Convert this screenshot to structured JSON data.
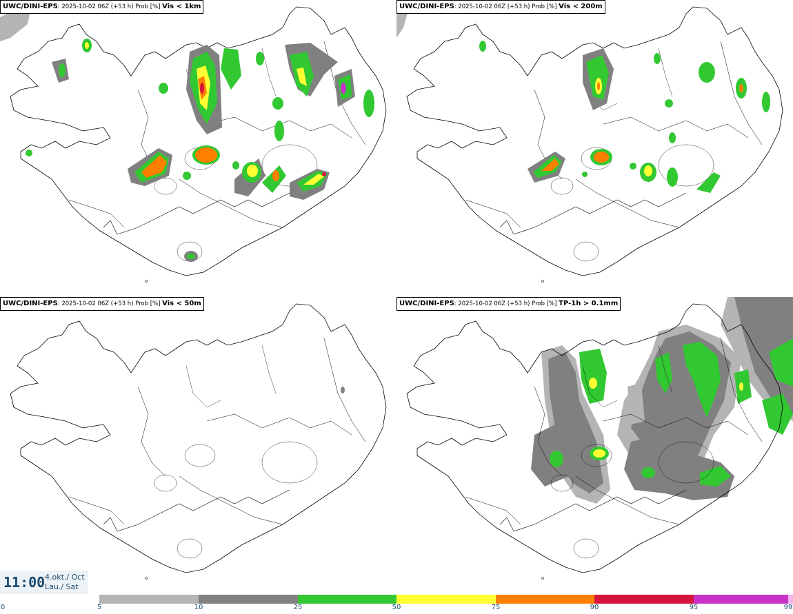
{
  "panels": [
    {
      "model": "UWC/DINI-EPS",
      "run": ": 2025-10-02 06Z (+53 h) Prob [%] ",
      "param": "Vis < 1km"
    },
    {
      "model": "UWC/DINI-EPS",
      "run": ": 2025-10-02 06Z (+53 h) Prob [%] ",
      "param": "Vis < 200m"
    },
    {
      "model": "UWC/DINI-EPS",
      "run": ": 2025-10-02 06Z (+53 h) Prob [%] ",
      "param": "Vis < 50m"
    },
    {
      "model": "UWC/DINI-EPS",
      "run": ": 2025-10-02 06Z (+53 h) Prob [%] ",
      "param": "TP-1h > 0.1mm"
    }
  ],
  "time": {
    "clock": "11:00",
    "date": "4.okt./ Oct",
    "weekday": "Lau./ Sat"
  },
  "legend": {
    "ticks": [
      "0",
      "5",
      "10",
      "25",
      "50",
      "75",
      "90",
      "95",
      "99"
    ],
    "colors": [
      "#ffffff",
      "#b4b4b4",
      "#808080",
      "#32c832",
      "#ffff33",
      "#ff7f00",
      "#d7143c",
      "#c832c8",
      "#f0b4f0"
    ]
  }
}
